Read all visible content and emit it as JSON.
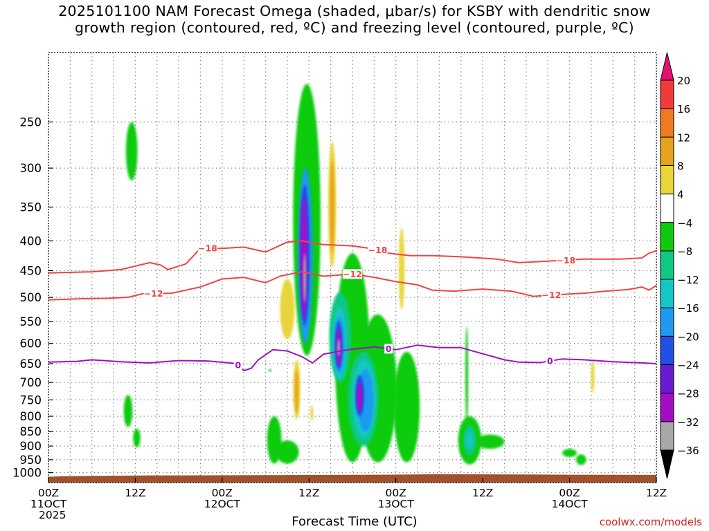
{
  "chart_data": {
    "type": "heatmap",
    "title_line1": "2025101100 NAM Forecast Omega (shaded, μbar/s) for KSBY with dendritic snow",
    "title_line2": "growth region (contoured, red, ºC) and freezing level (contoured, purple, ºC)",
    "xlabel": "Forecast Time (UTC)",
    "ylabel": "",
    "credit": "coolwx.com/models",
    "x_range_hours": [
      0,
      84
    ],
    "y_range_hpa": [
      1040,
      190
    ],
    "y_ticks": [
      250,
      300,
      350,
      400,
      450,
      500,
      550,
      600,
      650,
      700,
      750,
      800,
      850,
      900,
      950,
      1000
    ],
    "x_ticks": [
      {
        "hour": 0,
        "line1": "00Z",
        "line2": "11OCT",
        "line3": "2025"
      },
      {
        "hour": 12,
        "line1": "12Z",
        "line2": "",
        "line3": ""
      },
      {
        "hour": 24,
        "line1": "00Z",
        "line2": "12OCT",
        "line3": ""
      },
      {
        "hour": 36,
        "line1": "12Z",
        "line2": "",
        "line3": ""
      },
      {
        "hour": 48,
        "line1": "00Z",
        "line2": "13OCT",
        "line3": ""
      },
      {
        "hour": 60,
        "line1": "12Z",
        "line2": "",
        "line3": ""
      },
      {
        "hour": 72,
        "line1": "00Z",
        "line2": "14OCT",
        "line3": ""
      },
      {
        "hour": 84,
        "line1": "12Z",
        "line2": "",
        "line3": ""
      }
    ],
    "grid_hours": [
      3,
      6,
      9,
      12,
      15,
      18,
      21,
      24,
      27,
      30,
      33,
      36,
      39,
      42,
      45,
      48,
      51,
      54,
      57,
      60,
      63,
      66,
      69,
      72,
      75,
      78,
      81
    ],
    "colorbar": {
      "labels": [
        "20",
        "16",
        "12",
        "8",
        "4",
        "−4",
        "−8",
        "−12",
        "−16",
        "−20",
        "−24",
        "−28",
        "−32",
        "−36"
      ],
      "bins": [
        {
          "color": "#e60f72"
        },
        {
          "color": "#f23a3a"
        },
        {
          "color": "#ef7a1f"
        },
        {
          "color": "#e7a21e"
        },
        {
          "color": "#e8d53a"
        },
        {
          "color": "#ffffff"
        },
        {
          "color": "#0ecb0e"
        },
        {
          "color": "#10c884"
        },
        {
          "color": "#14c6c6"
        },
        {
          "color": "#1f9af0"
        },
        {
          "color": "#2050e6"
        },
        {
          "color": "#6a1ad2"
        },
        {
          "color": "#a20ec8"
        },
        {
          "color": "#a8a8a8"
        },
        {
          "color": "#000000"
        }
      ]
    },
    "ground": {
      "color": "#a0522d",
      "points": [
        [
          0,
          1016
        ],
        [
          2,
          1014
        ],
        [
          14,
          1011
        ],
        [
          30,
          1010
        ],
        [
          46,
          1008
        ],
        [
          54,
          1006
        ],
        [
          66,
          1007
        ],
        [
          72,
          1008
        ],
        [
          84,
          1009
        ]
      ]
    },
    "omega_features": [
      {
        "hour": 11.5,
        "p_top": 250,
        "p_bottom": 315,
        "halfwidth_h": 0.8,
        "color": "#0ecb0e"
      },
      {
        "hour": 30.6,
        "p_top": 690,
        "p_bottom": 645,
        "halfwidth_h": 0.2,
        "color": "#0ecb0e"
      },
      {
        "hour": 35.7,
        "p_top": 215,
        "p_bottom": 630,
        "halfwidth_h": 1.9,
        "color": "#0ecb0e"
      },
      {
        "hour": 35.5,
        "p_top": 300,
        "p_bottom": 600,
        "halfwidth_h": 1.0,
        "color": "#1f9af0"
      },
      {
        "hour": 35.4,
        "p_top": 320,
        "p_bottom": 560,
        "halfwidth_h": 0.7,
        "color": "#2050e6"
      },
      {
        "hour": 35.3,
        "p_top": 335,
        "p_bottom": 545,
        "halfwidth_h": 0.45,
        "color": "#a20ec8"
      },
      {
        "hour": 35.4,
        "p_top": 420,
        "p_bottom": 510,
        "halfwidth_h": 0.2,
        "color": "#a8a8a8"
      },
      {
        "hour": 33.0,
        "p_top": 465,
        "p_bottom": 590,
        "halfwidth_h": 1.0,
        "color": "#e8d53a"
      },
      {
        "hour": 39.2,
        "p_top": 270,
        "p_bottom": 445,
        "halfwidth_h": 0.55,
        "color": "#e8d53a"
      },
      {
        "hour": 39.2,
        "p_top": 290,
        "p_bottom": 420,
        "halfwidth_h": 0.3,
        "color": "#e7a21e"
      },
      {
        "hour": 34.3,
        "p_top": 640,
        "p_bottom": 810,
        "halfwidth_h": 0.5,
        "color": "#e8d53a"
      },
      {
        "hour": 34.3,
        "p_top": 665,
        "p_bottom": 790,
        "halfwidth_h": 0.25,
        "color": "#e7a21e"
      },
      {
        "hour": 36.4,
        "p_top": 765,
        "p_bottom": 815,
        "halfwidth_h": 0.2,
        "color": "#e8d53a"
      },
      {
        "hour": 48.8,
        "p_top": 380,
        "p_bottom": 525,
        "halfwidth_h": 0.4,
        "color": "#e8d53a"
      },
      {
        "hour": 75.2,
        "p_top": 640,
        "p_bottom": 730,
        "halfwidth_h": 0.25,
        "color": "#e8d53a"
      },
      {
        "hour": 42.0,
        "p_top": 420,
        "p_bottom": 960,
        "halfwidth_h": 2.4,
        "color": "#0ecb0e"
      },
      {
        "hour": 45.5,
        "p_top": 535,
        "p_bottom": 960,
        "halfwidth_h": 2.6,
        "color": "#0ecb0e"
      },
      {
        "hour": 49.5,
        "p_top": 620,
        "p_bottom": 960,
        "halfwidth_h": 1.8,
        "color": "#0ecb0e"
      },
      {
        "hour": 40.3,
        "p_top": 490,
        "p_bottom": 700,
        "halfwidth_h": 1.5,
        "color": "#10c884"
      },
      {
        "hour": 43.5,
        "p_top": 620,
        "p_bottom": 900,
        "halfwidth_h": 2.1,
        "color": "#10c884"
      },
      {
        "hour": 40.2,
        "p_top": 520,
        "p_bottom": 690,
        "halfwidth_h": 1.0,
        "color": "#14c6c6"
      },
      {
        "hour": 43.6,
        "p_top": 640,
        "p_bottom": 870,
        "halfwidth_h": 1.6,
        "color": "#14c6c6"
      },
      {
        "hour": 40.2,
        "p_top": 540,
        "p_bottom": 675,
        "halfwidth_h": 0.7,
        "color": "#1f9af0"
      },
      {
        "hour": 43.8,
        "p_top": 665,
        "p_bottom": 850,
        "halfwidth_h": 1.1,
        "color": "#1f9af0"
      },
      {
        "hour": 40.1,
        "p_top": 550,
        "p_bottom": 665,
        "halfwidth_h": 0.5,
        "color": "#2050e6"
      },
      {
        "hour": 43.0,
        "p_top": 680,
        "p_bottom": 800,
        "halfwidth_h": 0.6,
        "color": "#2050e6"
      },
      {
        "hour": 40.1,
        "p_top": 565,
        "p_bottom": 655,
        "halfwidth_h": 0.35,
        "color": "#a20ec8"
      },
      {
        "hour": 43.0,
        "p_top": 700,
        "p_bottom": 785,
        "halfwidth_h": 0.4,
        "color": "#a20ec8"
      },
      {
        "hour": 40.1,
        "p_top": 590,
        "p_bottom": 630,
        "halfwidth_h": 0.15,
        "color": "#a8a8a8"
      },
      {
        "hour": 11.0,
        "p_top": 735,
        "p_bottom": 835,
        "halfwidth_h": 0.6,
        "color": "#0ecb0e"
      },
      {
        "hour": 12.2,
        "p_top": 840,
        "p_bottom": 905,
        "halfwidth_h": 0.5,
        "color": "#0ecb0e"
      },
      {
        "hour": 31.2,
        "p_top": 800,
        "p_bottom": 965,
        "halfwidth_h": 1.0,
        "color": "#0ecb0e"
      },
      {
        "hour": 33.0,
        "p_top": 880,
        "p_bottom": 965,
        "halfwidth_h": 1.6,
        "color": "#0ecb0e"
      },
      {
        "hour": 57.8,
        "p_top": 560,
        "p_bottom": 830,
        "halfwidth_h": 0.2,
        "color": "#0ecb0e"
      },
      {
        "hour": 58.2,
        "p_top": 800,
        "p_bottom": 968,
        "halfwidth_h": 1.6,
        "color": "#0ecb0e"
      },
      {
        "hour": 61.0,
        "p_top": 860,
        "p_bottom": 910,
        "halfwidth_h": 2.0,
        "color": "#0ecb0e"
      },
      {
        "hour": 58.2,
        "p_top": 830,
        "p_bottom": 935,
        "halfwidth_h": 0.9,
        "color": "#10c884"
      },
      {
        "hour": 58.2,
        "p_top": 850,
        "p_bottom": 910,
        "halfwidth_h": 0.5,
        "color": "#14c6c6"
      },
      {
        "hour": 72.0,
        "p_top": 910,
        "p_bottom": 940,
        "halfwidth_h": 1.0,
        "color": "#0ecb0e"
      },
      {
        "hour": 73.6,
        "p_top": 930,
        "p_bottom": 970,
        "halfwidth_h": 0.7,
        "color": "#0ecb0e"
      }
    ],
    "contours": [
      {
        "label": "−18",
        "color": "#ef4444",
        "label_hours": [
          22.0,
          45.5,
          71.5
        ],
        "points": [
          [
            0,
            454
          ],
          [
            6,
            452
          ],
          [
            10,
            448
          ],
          [
            14,
            436
          ],
          [
            15.5,
            440
          ],
          [
            16.5,
            448
          ],
          [
            19,
            438
          ],
          [
            21,
            412
          ],
          [
            24,
            412
          ],
          [
            27,
            410
          ],
          [
            30,
            418
          ],
          [
            33,
            402
          ],
          [
            35,
            400
          ],
          [
            38,
            406
          ],
          [
            42,
            408
          ],
          [
            45,
            413
          ],
          [
            47,
            420
          ],
          [
            50,
            424
          ],
          [
            53,
            424
          ],
          [
            57,
            426
          ],
          [
            62,
            430
          ],
          [
            65,
            436
          ],
          [
            68,
            434
          ],
          [
            74,
            430
          ],
          [
            79,
            430
          ],
          [
            82,
            428
          ],
          [
            83,
            420
          ],
          [
            84,
            416
          ]
        ]
      },
      {
        "label": "−12",
        "color": "#ef4444",
        "label_hours": [
          14.5,
          42.0,
          69.5
        ],
        "points": [
          [
            0,
            505
          ],
          [
            4,
            503
          ],
          [
            8,
            502
          ],
          [
            11,
            500
          ],
          [
            13,
            493
          ],
          [
            17,
            492
          ],
          [
            21,
            480
          ],
          [
            24,
            465
          ],
          [
            27,
            462
          ],
          [
            30,
            472
          ],
          [
            32,
            460
          ],
          [
            35,
            452
          ],
          [
            38,
            460
          ],
          [
            42,
            456
          ],
          [
            45,
            462
          ],
          [
            48,
            470
          ],
          [
            51,
            476
          ],
          [
            53,
            486
          ],
          [
            56,
            488
          ],
          [
            60,
            484
          ],
          [
            64,
            488
          ],
          [
            67,
            498
          ],
          [
            70,
            495
          ],
          [
            74,
            492
          ],
          [
            77,
            488
          ],
          [
            80,
            485
          ],
          [
            82,
            480
          ],
          [
            83,
            486
          ],
          [
            84,
            477
          ]
        ]
      },
      {
        "label": "0",
        "color": "#9b11c8",
        "label_hours": [
          26.2,
          47.0,
          69.3
        ],
        "points": [
          [
            0,
            646
          ],
          [
            4,
            644
          ],
          [
            6,
            640
          ],
          [
            10,
            645
          ],
          [
            14,
            648
          ],
          [
            18,
            642
          ],
          [
            22,
            643
          ],
          [
            25,
            648
          ],
          [
            26,
            650
          ],
          [
            27,
            668
          ],
          [
            28,
            662
          ],
          [
            29,
            640
          ],
          [
            31,
            615
          ],
          [
            33,
            618
          ],
          [
            35,
            632
          ],
          [
            36.5,
            648
          ],
          [
            38,
            626
          ],
          [
            41,
            616
          ],
          [
            45,
            608
          ],
          [
            48,
            615
          ],
          [
            51,
            604
          ],
          [
            54,
            610
          ],
          [
            57,
            610
          ],
          [
            60,
            625
          ],
          [
            63,
            640
          ],
          [
            65,
            646
          ],
          [
            68,
            647
          ],
          [
            71,
            638
          ],
          [
            74,
            640
          ],
          [
            78,
            645
          ],
          [
            82,
            648
          ],
          [
            84,
            650
          ]
        ]
      }
    ]
  }
}
